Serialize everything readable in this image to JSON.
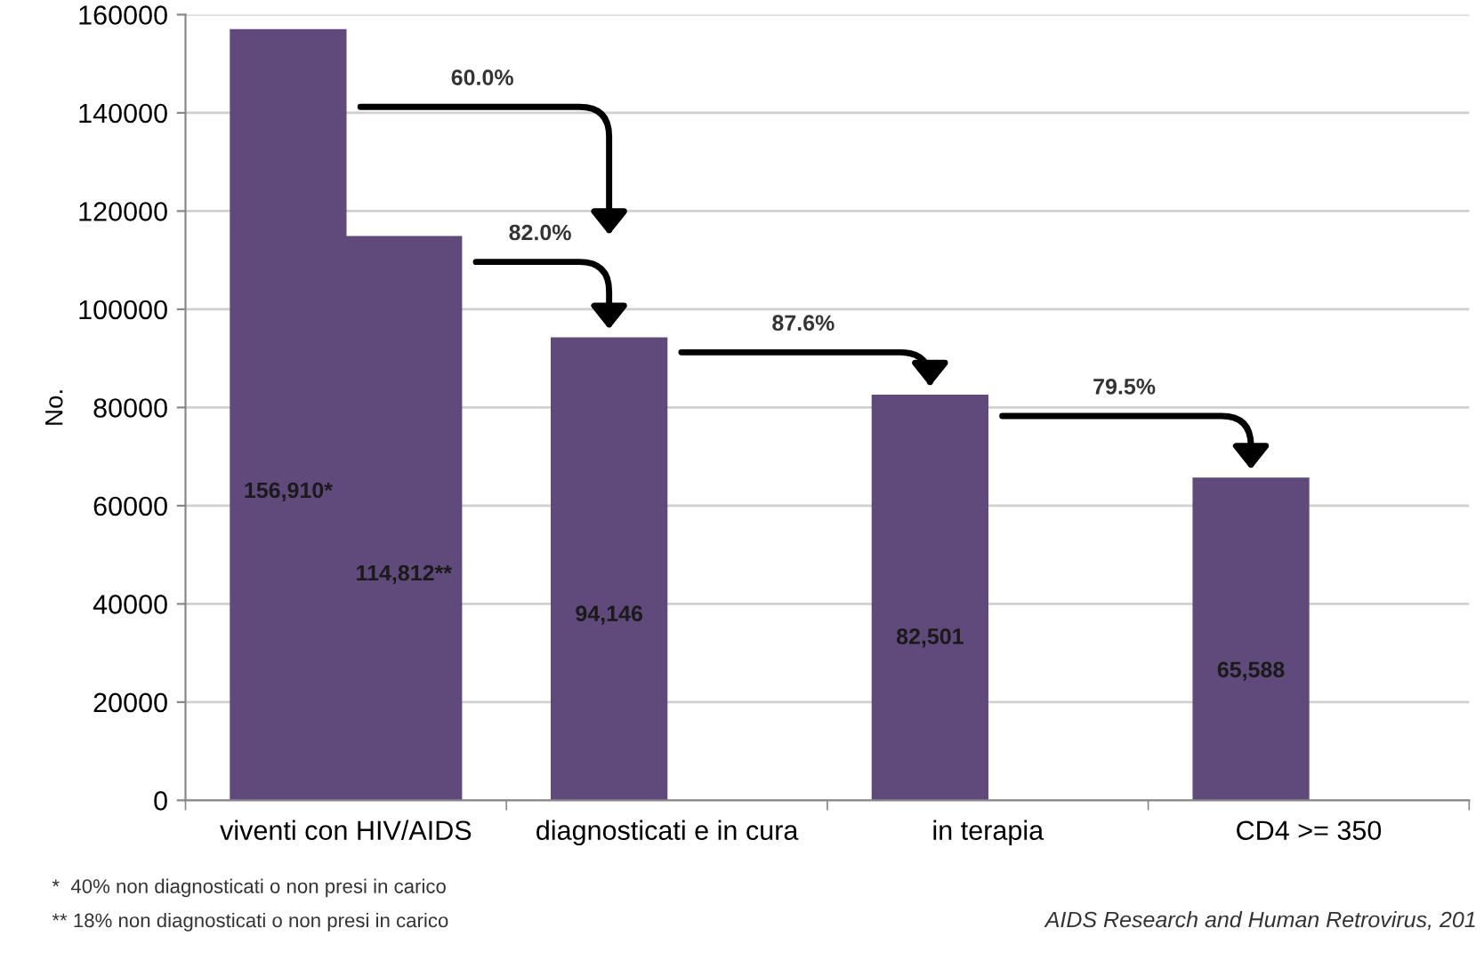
{
  "chart_data": {
    "type": "bar",
    "categories": [
      "viventi con HIV/AIDS",
      "diagnosticati e in cura",
      "in terapia",
      "CD4 >= 350"
    ],
    "series": [
      {
        "color": "#5f4a7b",
        "values": [
          156910,
          94146,
          82501,
          65588
        ],
        "value_labels": [
          "156,910*",
          "94,146",
          "82,501",
          "65,588"
        ]
      },
      {
        "color": "#5f4a7b",
        "values": [
          114812,
          null,
          null,
          null
        ],
        "value_labels": [
          "114,812**",
          null,
          null,
          null
        ]
      }
    ],
    "ylabel": "No.",
    "ylim": [
      0,
      160000
    ],
    "yticks": [
      0,
      20000,
      40000,
      60000,
      80000,
      100000,
      120000,
      140000,
      160000
    ],
    "grid": "y",
    "legend": false,
    "annotations": [
      "60.0%",
      "82.0%",
      "87.6%",
      "79.5%",
      "*  40% non diagnosticati o non presi in carico",
      "** 18% non diagnosticati o non presi in carico",
      "AIDS Research and Human Retrovirus, 201"
    ]
  }
}
